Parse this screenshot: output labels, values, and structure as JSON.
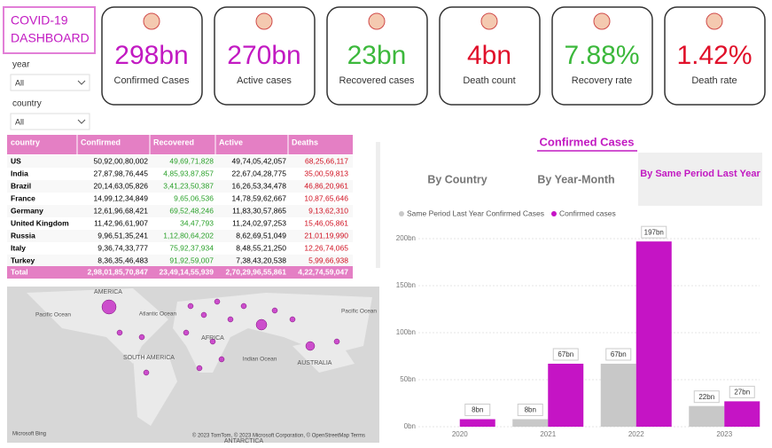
{
  "header": {
    "title": [
      "COVID-19",
      "DASHBOARD"
    ]
  },
  "kpis": [
    {
      "value": "298bn",
      "label": "Confirmed Cases",
      "color": "#c21ac2"
    },
    {
      "value": "270bn",
      "label": "Active cases",
      "color": "#c21ac2"
    },
    {
      "value": "23bn",
      "label": "Recovered cases",
      "color": "#3cb83c"
    },
    {
      "value": "4bn",
      "label": "Death count",
      "color": "#e0102a"
    },
    {
      "value": "7.88%",
      "label": "Recovery rate",
      "color": "#3cb83c"
    },
    {
      "value": "1.42%",
      "label": "Death rate",
      "color": "#e0102a"
    }
  ],
  "filters": [
    {
      "label": "year",
      "value": "All"
    },
    {
      "label": "country",
      "value": "All"
    }
  ],
  "table": {
    "columns": [
      "country",
      "Confirmed",
      "Recovered",
      "Active",
      "Deaths"
    ],
    "rows": [
      [
        "US",
        "50,92,00,80,002",
        "49,69,71,828",
        "49,74,05,42,057",
        "68,25,66,117"
      ],
      [
        "India",
        "27,87,98,76,445",
        "4,85,93,87,857",
        "22,67,04,28,775",
        "35,00,59,813"
      ],
      [
        "Brazil",
        "20,14,63,05,826",
        "3,41,23,50,387",
        "16,26,53,34,478",
        "46,86,20,961"
      ],
      [
        "France",
        "14,99,12,34,849",
        "9,65,06,536",
        "14,78,59,62,667",
        "10,87,65,646"
      ],
      [
        "Germany",
        "12,61,96,68,421",
        "69,52,48,246",
        "11,83,30,57,865",
        "9,13,62,310"
      ],
      [
        "United Kingdom",
        "11,42,96,61,907",
        "34,47,793",
        "11,24,02,97,253",
        "15,46,05,861"
      ],
      [
        "Russia",
        "9,96,51,35,241",
        "1,12,80,64,202",
        "8,62,69,51,049",
        "21,01,19,990"
      ],
      [
        "Italy",
        "9,36,74,33,777",
        "75,92,37,934",
        "8,48,55,21,250",
        "12,26,74,065"
      ],
      [
        "Turkey",
        "8,36,35,46,483",
        "91,92,59,007",
        "7,38,43,20,538",
        "5,99,66,938"
      ]
    ],
    "total": [
      "Total",
      "2,98,01,85,70,847",
      "23,49,14,55,939",
      "2,70,29,96,55,861",
      "4,22,74,59,047"
    ]
  },
  "map": {
    "labels": [
      "AMERICA",
      "Pacific Ocean",
      "Atlantic Ocean",
      "SOUTH AMERICA",
      "AFRICA",
      "Indian Ocean",
      "AUSTRALIA",
      "ANTARCTICA",
      "Pacific Ocean"
    ],
    "logo": "Microsoft Bing",
    "attribution": "© 2023 TomTom, © 2023 Microsoft Corporation, © OpenStreetMap  Terms"
  },
  "tabs": {
    "items": [
      "By Country",
      "By Year-Month",
      "By Same Period Last Year"
    ],
    "selected": 2
  },
  "chart_data": {
    "type": "bar",
    "title": "Confirmed Cases",
    "categories": [
      "2020",
      "2021",
      "2022",
      "2023"
    ],
    "series": [
      {
        "name": "Same Period Last Year Confirmed Cases",
        "color": "#c8c8c8",
        "values": [
          null,
          8,
          67,
          22
        ],
        "value_labels": [
          null,
          "8bn",
          "67bn",
          "22bn"
        ]
      },
      {
        "name": "Confirmed cases",
        "color": "#c514c5",
        "values": [
          8,
          67,
          197,
          27
        ],
        "value_labels": [
          "8bn",
          "67bn",
          "197bn",
          "27bn"
        ]
      }
    ],
    "ylim": [
      0,
      200
    ],
    "yticks": [
      {
        "value": 0,
        "label": "0bn"
      },
      {
        "value": 50,
        "label": "50bn"
      },
      {
        "value": 100,
        "label": "100bn"
      },
      {
        "value": 150,
        "label": "150bn"
      },
      {
        "value": 200,
        "label": "200bn"
      }
    ],
    "grid": true
  }
}
